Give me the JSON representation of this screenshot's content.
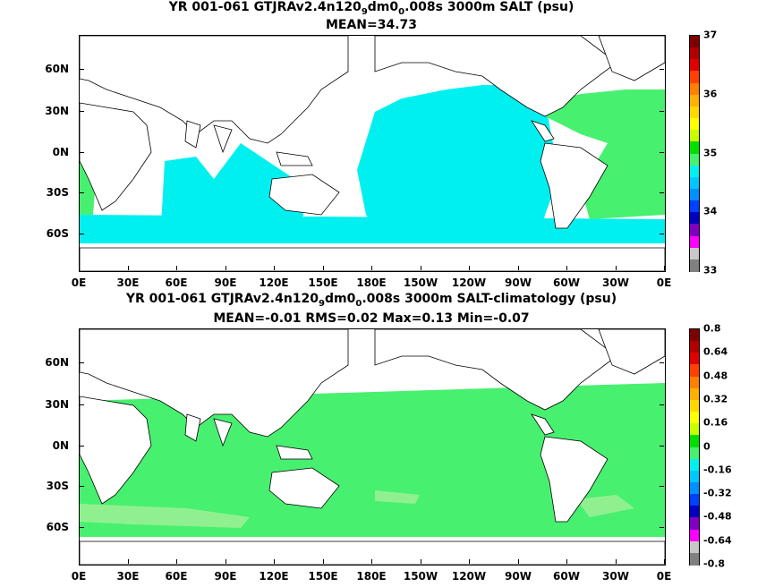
{
  "panels": [
    {
      "title_parts": [
        "YR 001-061 GTJRAv2.4n120",
        "9",
        "dm0",
        "0",
        ".008s 3000m SALT (psu)"
      ],
      "stats": "MEAN=34.73",
      "ocean_color": "#00f0f0",
      "patch_color": "#48f070",
      "colorbar": {
        "labels": [
          "37",
          "36",
          "35",
          "34",
          "33"
        ],
        "colors": [
          "#7f0000",
          "#b00000",
          "#e00000",
          "#ff4000",
          "#ff8000",
          "#ffb000",
          "#ffd800",
          "#ffff00",
          "#c8ff00",
          "#00e000",
          "#48f070",
          "#00f0f0",
          "#00c8ff",
          "#0090ff",
          "#0040ff",
          "#0000c0",
          "#8000c0",
          "#ff00ff",
          "#c8c8c8",
          "#808080"
        ]
      }
    },
    {
      "title_parts": [
        "YR 001-061 GTJRAv2.4n120",
        "9",
        "dm0",
        "0",
        ".008s 3000m SALT-climatology (psu)"
      ],
      "stats": "MEAN=-0.01   RMS=0.02   Max=0.13   Min=-0.07",
      "ocean_color": "#48f070",
      "patch_color": "#90f090",
      "colorbar": {
        "labels": [
          "0.8",
          "0.64",
          "0.48",
          "0.32",
          "0.16",
          "0",
          "-0.16",
          "-0.32",
          "-0.48",
          "-0.64",
          "-0.8"
        ],
        "colors": [
          "#7f0000",
          "#b00000",
          "#e00000",
          "#ff4000",
          "#ff8000",
          "#ffb000",
          "#ffd800",
          "#ffff00",
          "#c8ff00",
          "#00e000",
          "#48f070",
          "#00f0f0",
          "#00c8ff",
          "#0090ff",
          "#0040ff",
          "#0000c0",
          "#8000c0",
          "#ff00ff",
          "#c8c8c8",
          "#808080"
        ]
      }
    }
  ],
  "lat_labels": [
    "60N",
    "30N",
    "0N",
    "30S",
    "60S"
  ],
  "lon_labels": [
    "0E",
    "30E",
    "60E",
    "90E",
    "120E",
    "150E",
    "180E",
    "150W",
    "120W",
    "90W",
    "60W",
    "30W",
    "0E"
  ]
}
